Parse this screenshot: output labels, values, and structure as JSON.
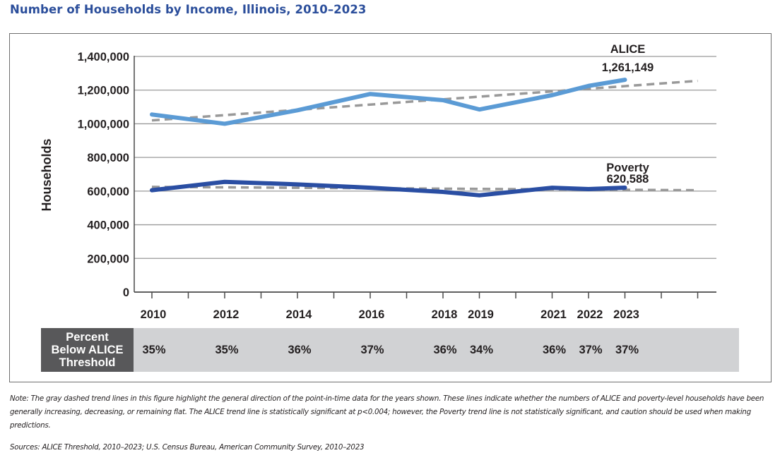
{
  "title": "Number of Households by Income, Illinois, 2010–2023",
  "chart_data": {
    "type": "line",
    "title": "Number of Households by Income, Illinois, 2010–2023",
    "xlabel": "",
    "ylabel": "Households",
    "x": [
      2010,
      2012,
      2014,
      2016,
      2018,
      2019,
      2021,
      2022,
      2023
    ],
    "x_tick_labels": [
      "2010",
      "2012",
      "2014",
      "2016",
      "2018",
      "2019",
      "2021",
      "2022",
      "2023"
    ],
    "x_tick_marks": [
      2010,
      2011,
      2012,
      2013,
      2014,
      2015,
      2016,
      2017,
      2018,
      2019,
      2020,
      2021,
      2022,
      2023,
      2024,
      2025
    ],
    "xlim": [
      2009.5,
      2025.5
    ],
    "ylim": [
      0,
      1400000
    ],
    "y_ticks": [
      0,
      200000,
      400000,
      600000,
      800000,
      1000000,
      1200000,
      1400000
    ],
    "y_tick_labels": [
      "0",
      "200,000",
      "400,000",
      "600,000",
      "800,000",
      "1,000,000",
      "1,200,000",
      "1,400,000"
    ],
    "grid": true,
    "series": [
      {
        "name": "ALICE",
        "color": "#5b9bd5",
        "values": [
          1055000,
          1000000,
          1080000,
          1177000,
          1140000,
          1085000,
          1170000,
          1225000,
          1261149
        ],
        "end_label": "ALICE",
        "end_value_label": "1,261,149"
      },
      {
        "name": "Poverty",
        "color": "#2a4ea3",
        "values": [
          605000,
          655000,
          640000,
          620000,
          595000,
          575000,
          620000,
          612000,
          620588
        ],
        "end_label": "Poverty",
        "end_value_label": "620,588"
      }
    ],
    "trend_lines": [
      {
        "name": "ALICE trend",
        "color": "#999999",
        "style": "dashed",
        "from": [
          2010,
          1020000
        ],
        "to": [
          2025,
          1255000
        ]
      },
      {
        "name": "Poverty trend",
        "color": "#999999",
        "style": "dashed",
        "from": [
          2010,
          625000
        ],
        "to": [
          2025,
          605000
        ]
      }
    ],
    "percent_row": {
      "label": "Percent Below ALICE Threshold",
      "label_lines": [
        "Percent",
        "Below ALICE",
        "Threshold"
      ],
      "years": [
        2010,
        2012,
        2014,
        2016,
        2018,
        2019,
        2021,
        2022,
        2023
      ],
      "values": [
        "35%",
        "35%",
        "36%",
        "37%",
        "36%",
        "34%",
        "36%",
        "37%",
        "37%"
      ]
    }
  },
  "note": "Note: The gray dashed trend lines in this figure highlight the general direction of the point-in-time data for the years shown. These lines indicate whether the numbers of ALICE and poverty-level households have been generally increasing, decreasing, or remaining flat. The ALICE trend line is statistically significant at p<0.004; however, the Poverty trend line is not statistically significant, and caution should be used when making predictions.",
  "sources": "Sources: ALICE Threshold, 2010–2023; U.S. Census Bureau, American Community Survey, 2010–2023"
}
